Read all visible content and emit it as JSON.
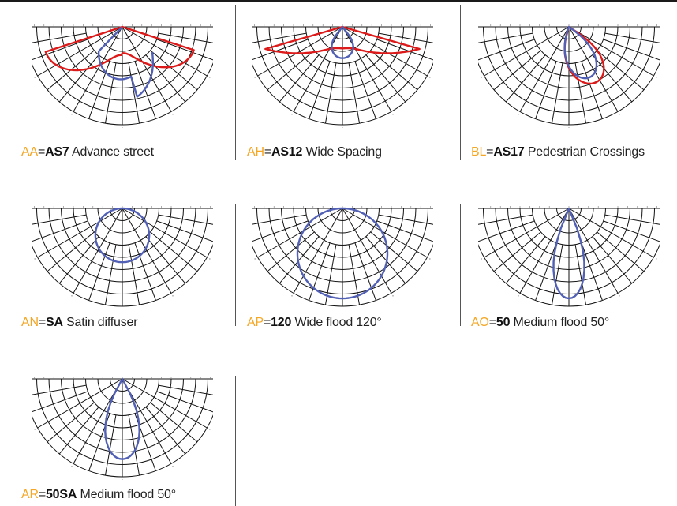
{
  "colors": {
    "grid": "#111111",
    "red_curve": "#dd1a1a",
    "blue_curve": "#5160b4",
    "code_orange": "#f5a623"
  },
  "options": [
    {
      "code": "AA",
      "eq": "=",
      "model": "AS7",
      "desc": " Advance street",
      "curves": [
        "red",
        "blue"
      ],
      "shape": "advance"
    },
    {
      "code": "AH",
      "eq": "=",
      "model": "AS12",
      "desc": " Wide Spacing",
      "curves": [
        "red",
        "blue"
      ],
      "shape": "wide"
    },
    {
      "code": "BL",
      "eq": "=",
      "model": "AS17",
      "desc": " Pedestrian Crossings",
      "curves": [
        "red",
        "blue"
      ],
      "shape": "pedestrian"
    },
    {
      "code": "AN",
      "eq": "=",
      "model": "SA",
      "desc": " Satin diffuser",
      "curves": [
        "blue"
      ],
      "shape": "satin"
    },
    {
      "code": "AP",
      "eq": "=",
      "model": "120",
      "desc": " Wide flood 120°",
      "curves": [
        "blue"
      ],
      "shape": "wide120"
    },
    {
      "code": "AO",
      "eq": "=",
      "model": "50",
      "desc": " Medium flood 50°",
      "curves": [
        "blue"
      ],
      "shape": "medium50"
    },
    {
      "code": "AR",
      "eq": "=",
      "model": "50SA",
      "desc": " Medium flood 50°",
      "curves": [
        "blue"
      ],
      "shape": "medium50sa"
    }
  ]
}
